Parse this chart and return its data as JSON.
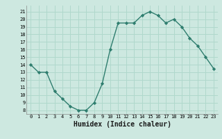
{
  "x": [
    0,
    1,
    2,
    3,
    4,
    5,
    6,
    7,
    8,
    9,
    10,
    11,
    12,
    13,
    14,
    15,
    16,
    17,
    18,
    19,
    20,
    21,
    22,
    23
  ],
  "y": [
    14,
    13,
    13,
    10.5,
    9.5,
    8.5,
    8,
    8,
    9,
    11.5,
    16,
    19.5,
    19.5,
    19.5,
    20.5,
    21,
    20.5,
    19.5,
    20,
    19,
    17.5,
    16.5,
    15,
    13.5
  ],
  "line_color": "#2e7d6e",
  "marker": "D",
  "markersize": 2.2,
  "linewidth": 1.0,
  "bg_color": "#cde8e0",
  "grid_color": "#b0d8cc",
  "xlabel": "Humidex (Indice chaleur)",
  "xlabel_fontsize": 7,
  "xtick_labels": [
    "0",
    "1",
    "2",
    "3",
    "4",
    "5",
    "6",
    "7",
    "8",
    "9",
    "10",
    "11",
    "12",
    "13",
    "14",
    "15",
    "16",
    "17",
    "18",
    "19",
    "20",
    "21",
    "22",
    "23"
  ],
  "ytick_min": 8,
  "ytick_max": 21,
  "ytick_step": 1,
  "xlim": [
    -0.5,
    23.5
  ],
  "ylim": [
    7.5,
    21.8
  ]
}
